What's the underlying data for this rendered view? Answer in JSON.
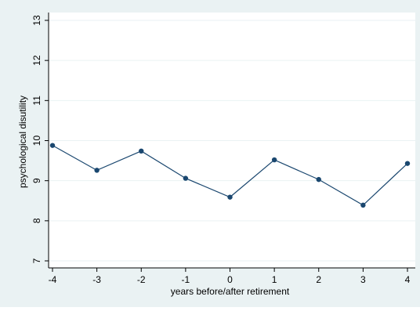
{
  "colors": {
    "outer_background": "#eaf2f3",
    "plot_background": "#ffffff",
    "grid": "#eaf2f3",
    "axis": "#000000",
    "line": "#1a476f",
    "marker": "#1a476f",
    "text": "#000000"
  },
  "chart_data": {
    "type": "line",
    "title": "",
    "xlabel": "years before/after retirement",
    "ylabel": "psychological disutility",
    "x": [
      -4,
      -3,
      -2,
      -1,
      0,
      1,
      2,
      3,
      4
    ],
    "x_tick_labels": [
      "-4",
      "-3",
      "-2",
      "-1",
      "0",
      "1",
      "2",
      "3",
      "4"
    ],
    "y_ticks": [
      7,
      8,
      9,
      10,
      11,
      12,
      13
    ],
    "y_tick_labels": [
      "7",
      "8",
      "9",
      "10",
      "11",
      "12",
      "13"
    ],
    "xlim": [
      -4,
      4
    ],
    "ylim": [
      6.9,
      13.1
    ],
    "grid": true,
    "legend": "none",
    "series": [
      {
        "values": [
          9.88,
          9.26,
          9.74,
          9.06,
          8.59,
          9.52,
          9.03,
          8.39,
          9.43
        ]
      }
    ]
  }
}
